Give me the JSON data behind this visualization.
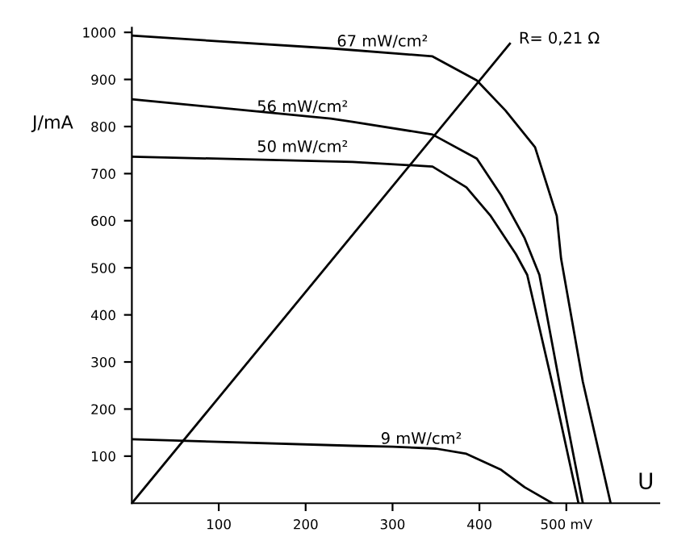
{
  "chart_data": {
    "type": "line",
    "xlabel": "U",
    "ylabel": "J/mA",
    "xlim": [
      0,
      607
    ],
    "ylim": [
      0,
      1010
    ],
    "xticks": [
      100,
      200,
      300,
      400,
      {
        "value": 500,
        "label": "500 mV"
      }
    ],
    "yticks": [
      100,
      200,
      300,
      400,
      500,
      600,
      700,
      800,
      900,
      1000
    ],
    "grid": false,
    "legend": false,
    "marker": "none",
    "line_style": "solid",
    "series": [
      {
        "color": "#000000",
        "x": [
          0,
          229,
          346,
          397,
          430,
          464,
          489,
          494,
          519,
          551
        ],
        "values": [
          993,
          966,
          949,
          898,
          834,
          756,
          610,
          519,
          258,
          0
        ]
      },
      {
        "color": "#000000",
        "x": [
          0,
          229,
          254,
          346,
          397,
          425,
          452,
          469,
          494,
          519
        ],
        "values": [
          858,
          817,
          810,
          783,
          732,
          654,
          563,
          485,
          237,
          0
        ]
      },
      {
        "color": "#000000",
        "x": [
          0,
          254,
          346,
          385,
          413,
          442,
          455,
          486,
          514
        ],
        "values": [
          736,
          725,
          715,
          671,
          610,
          529,
          485,
          237,
          0
        ]
      },
      {
        "color": "#000000",
        "x": [
          0,
          254,
          300,
          350,
          385,
          425,
          452,
          484
        ],
        "values": [
          136,
          122,
          120,
          116,
          105,
          71,
          34,
          0
        ]
      },
      {
        "color": "#000000",
        "x": [
          0,
          435
        ],
        "values": [
          0,
          976
        ]
      }
    ],
    "annotations": [
      {
        "text": "67 mW/cm²",
        "x": 346,
        "y": 949
      },
      {
        "text": "56 mW/cm²",
        "x": 254,
        "y": 810
      },
      {
        "text": "50 mW/cm²",
        "x": 254,
        "y": 725
      },
      {
        "text": "9 mW/cm²",
        "x": 385,
        "y": 105
      },
      {
        "text": "R= 0,21 Ω",
        "x": 435,
        "y": 976
      }
    ]
  }
}
